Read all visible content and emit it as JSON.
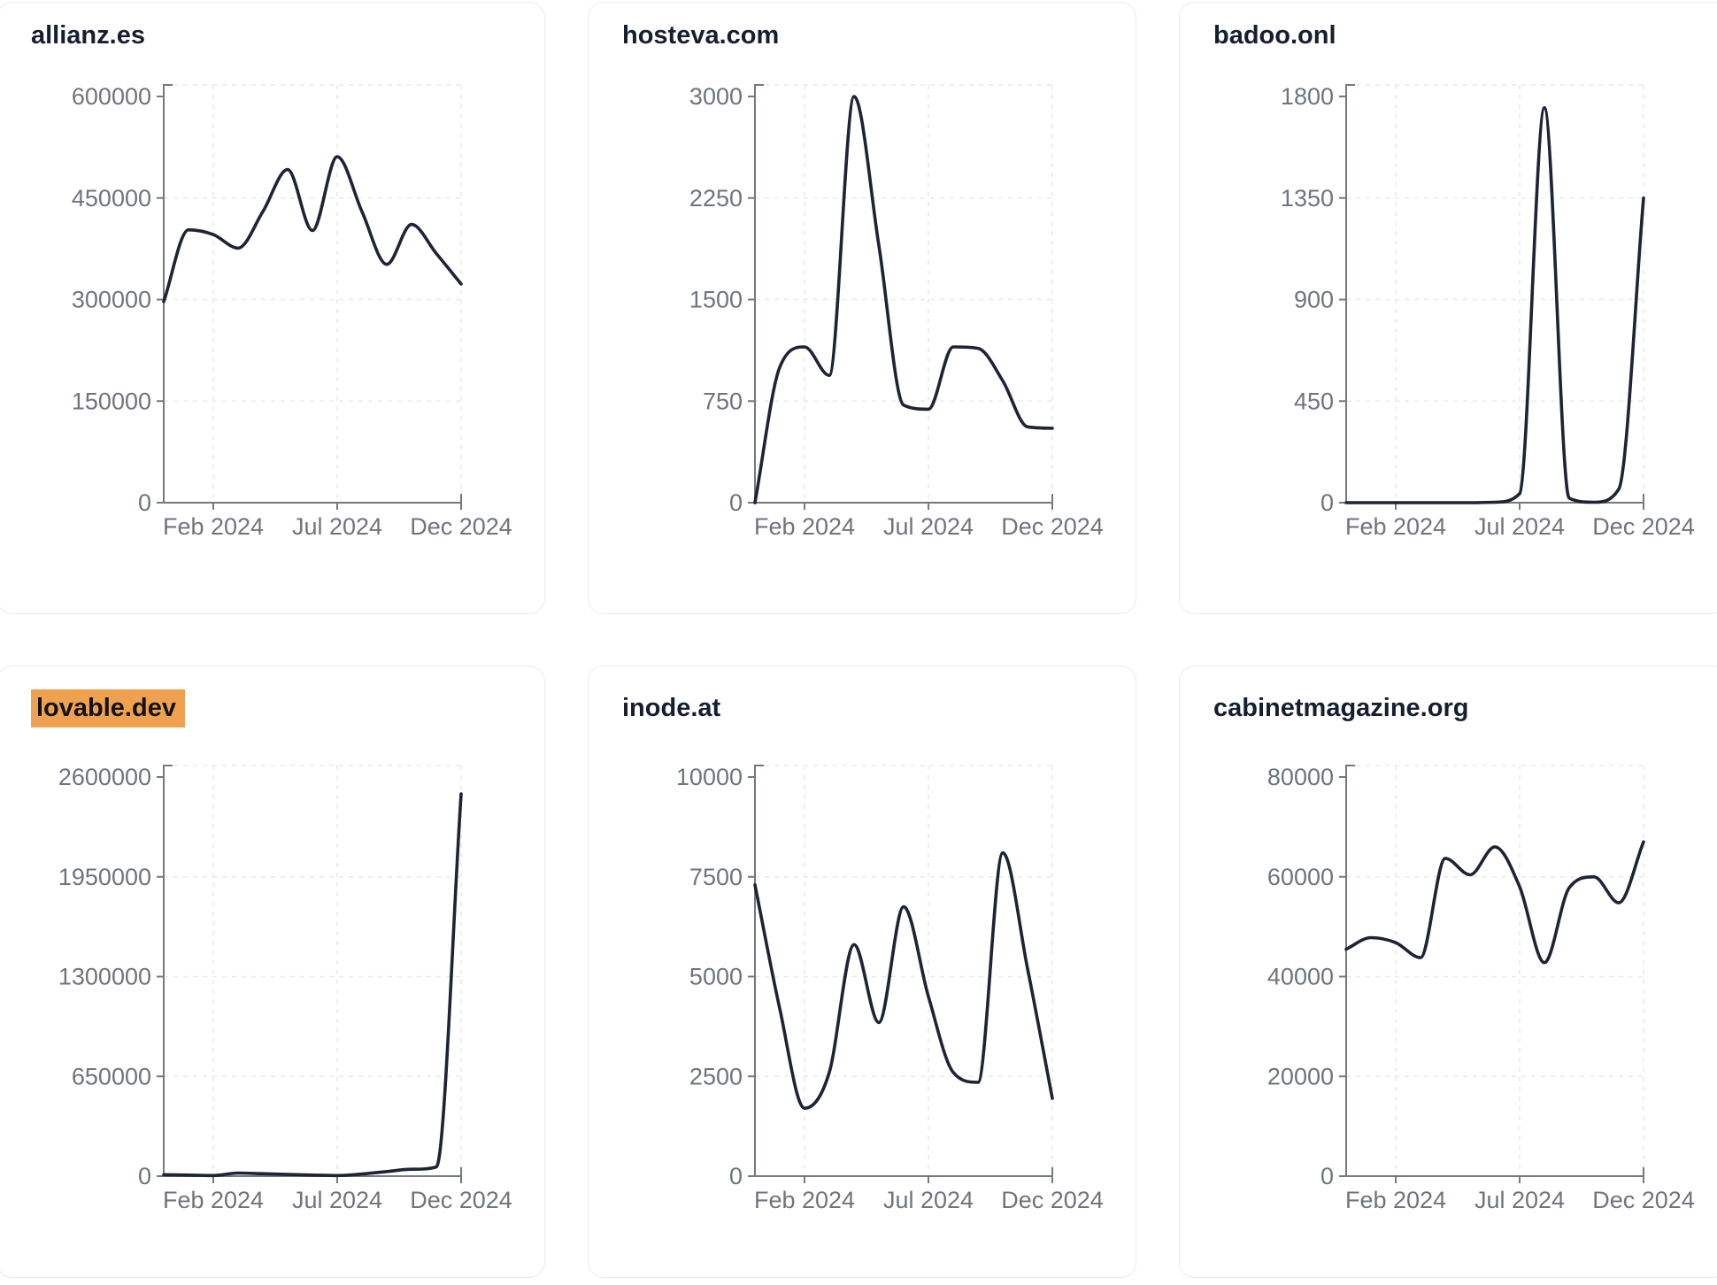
{
  "page": {
    "background": "#ffffff"
  },
  "theme": {
    "line_color": "#1e2335",
    "axis_color": "#74787f",
    "tick_label_color": "#6f747d",
    "grid_color": "#e8eaee",
    "card_border_color": "#e9eaef",
    "card_background": "#ffffff",
    "title_color": "#161e31",
    "highlight_background": "#f0a150",
    "highlight_text_color": "#111318"
  },
  "chart_data": [
    {
      "type": "line",
      "title": "allianz.es",
      "title_highlighted": false,
      "x": [
        "Dec 2023",
        "Jan 2024",
        "Feb 2024",
        "Mar 2024",
        "Apr 2024",
        "May 2024",
        "Jun 2024",
        "Jul 2024",
        "Aug 2024",
        "Sep 2024",
        "Oct 2024",
        "Nov 2024",
        "Dec 2024"
      ],
      "values": [
        297000,
        403000,
        396000,
        376000,
        430000,
        492000,
        402000,
        511000,
        430000,
        352000,
        411000,
        368000,
        323000
      ],
      "ylim": [
        0,
        600000
      ],
      "yticks": [
        0,
        150000,
        300000,
        450000,
        600000
      ],
      "xtick_labels": [
        "Feb 2024",
        "Jul 2024",
        "Dec 2024"
      ],
      "grid": true,
      "legend": false
    },
    {
      "type": "line",
      "title": "hosteva.com",
      "title_highlighted": false,
      "x": [
        "Dec 2023",
        "Jan 2024",
        "Feb 2024",
        "Mar 2024",
        "Apr 2024",
        "May 2024",
        "Jun 2024",
        "Jul 2024",
        "Aug 2024",
        "Sep 2024",
        "Oct 2024",
        "Nov 2024",
        "Dec 2024"
      ],
      "values": [
        0,
        1000,
        1150,
        940,
        3000,
        1900,
        720,
        690,
        1150,
        1140,
        900,
        560,
        550
      ],
      "ylim": [
        0,
        3000
      ],
      "yticks": [
        0,
        750,
        1500,
        2250,
        3000
      ],
      "xtick_labels": [
        "Feb 2024",
        "Jul 2024",
        "Dec 2024"
      ],
      "grid": true,
      "legend": false
    },
    {
      "type": "line",
      "title": "badoo.onl",
      "title_highlighted": false,
      "x": [
        "Dec 2023",
        "Jan 2024",
        "Feb 2024",
        "Mar 2024",
        "Apr 2024",
        "May 2024",
        "Jun 2024",
        "Jul 2024",
        "Aug 2024",
        "Sep 2024",
        "Oct 2024",
        "Nov 2024",
        "Dec 2024"
      ],
      "values": [
        0,
        0,
        0,
        0,
        0,
        0,
        2,
        40,
        1750,
        20,
        2,
        60,
        1350
      ],
      "ylim": [
        0,
        1800
      ],
      "yticks": [
        0,
        450,
        900,
        1350,
        1800
      ],
      "xtick_labels": [
        "Feb 2024",
        "Jul 2024",
        "Dec 2024"
      ],
      "grid": true,
      "legend": false
    },
    {
      "type": "line",
      "title": "lovable.dev",
      "title_highlighted": true,
      "x": [
        "Dec 2023",
        "Jan 2024",
        "Feb 2024",
        "Mar 2024",
        "Apr 2024",
        "May 2024",
        "Jun 2024",
        "Jul 2024",
        "Aug 2024",
        "Sep 2024",
        "Oct 2024",
        "Nov 2024",
        "Dec 2024"
      ],
      "values": [
        9000,
        7000,
        4000,
        20000,
        16000,
        11000,
        7000,
        4000,
        14000,
        30000,
        45000,
        60000,
        2490000
      ],
      "ylim": [
        0,
        2600000
      ],
      "yticks": [
        0,
        650000,
        1300000,
        1950000,
        2600000
      ],
      "xtick_labels": [
        "Feb 2024",
        "Jul 2024",
        "Dec 2024"
      ],
      "grid": true,
      "legend": false
    },
    {
      "type": "line",
      "title": "inode.at",
      "title_highlighted": false,
      "x": [
        "Dec 2023",
        "Jan 2024",
        "Feb 2024",
        "Mar 2024",
        "Apr 2024",
        "May 2024",
        "Jun 2024",
        "Jul 2024",
        "Aug 2024",
        "Sep 2024",
        "Oct 2024",
        "Nov 2024",
        "Dec 2024"
      ],
      "values": [
        7300,
        4200,
        1700,
        2600,
        5800,
        3850,
        6750,
        4500,
        2600,
        2350,
        8100,
        5200,
        1950
      ],
      "ylim": [
        0,
        10000
      ],
      "yticks": [
        0,
        2500,
        5000,
        7500,
        10000
      ],
      "xtick_labels": [
        "Feb 2024",
        "Jul 2024",
        "Dec 2024"
      ],
      "grid": true,
      "legend": false
    },
    {
      "type": "line",
      "title": "cabinetmagazine.org",
      "title_highlighted": false,
      "x": [
        "Dec 2023",
        "Jan 2024",
        "Feb 2024",
        "Mar 2024",
        "Apr 2024",
        "May 2024",
        "Jun 2024",
        "Jul 2024",
        "Aug 2024",
        "Sep 2024",
        "Oct 2024",
        "Nov 2024",
        "Dec 2024"
      ],
      "values": [
        45500,
        47800,
        46800,
        43800,
        63700,
        60400,
        66000,
        58000,
        42800,
        57800,
        60000,
        54800,
        67000
      ],
      "ylim": [
        0,
        80000
      ],
      "yticks": [
        0,
        20000,
        40000,
        60000,
        80000
      ],
      "xtick_labels": [
        "Feb 2024",
        "Jul 2024",
        "Dec 2024"
      ],
      "grid": true,
      "legend": false
    }
  ]
}
